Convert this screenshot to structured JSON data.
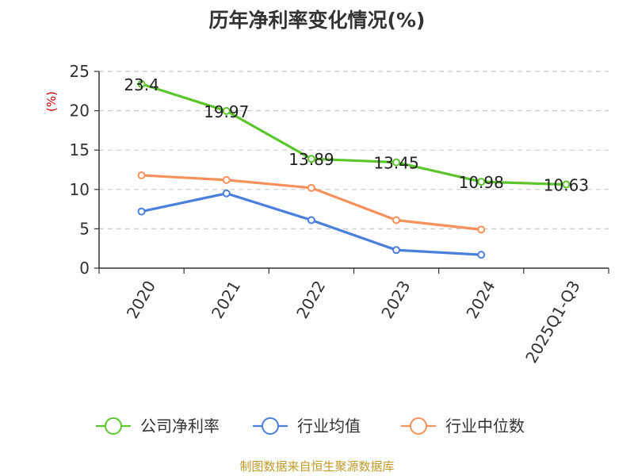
{
  "chart_data": {
    "type": "line",
    "title": "历年净利率变化情况(%)",
    "ylabel": "(%)",
    "categories": [
      "2020",
      "2021",
      "2022",
      "2023",
      "2024",
      "2025Q1-Q3"
    ],
    "ylim": [
      0,
      25
    ],
    "yticks": [
      0,
      5,
      10,
      15,
      20,
      25
    ],
    "grid": true,
    "legend_position": "bottom",
    "series": [
      {
        "name": "公司净利率",
        "color": "#5cc52b",
        "values": [
          23.4,
          19.97,
          13.89,
          13.45,
          10.98,
          10.63
        ],
        "labels": [
          "23.4",
          "19.97",
          "13.89",
          "13.45",
          "10.98",
          "10.63"
        ]
      },
      {
        "name": "行业均值",
        "color": "#4a7fdb",
        "values": [
          7.2,
          9.5,
          6.1,
          2.3,
          1.7,
          null
        ]
      },
      {
        "name": "行业中位数",
        "color": "#f7905a",
        "values": [
          11.8,
          11.2,
          10.2,
          6.1,
          4.9,
          null
        ]
      }
    ]
  },
  "source": "制图数据来自恒生聚源数据库"
}
